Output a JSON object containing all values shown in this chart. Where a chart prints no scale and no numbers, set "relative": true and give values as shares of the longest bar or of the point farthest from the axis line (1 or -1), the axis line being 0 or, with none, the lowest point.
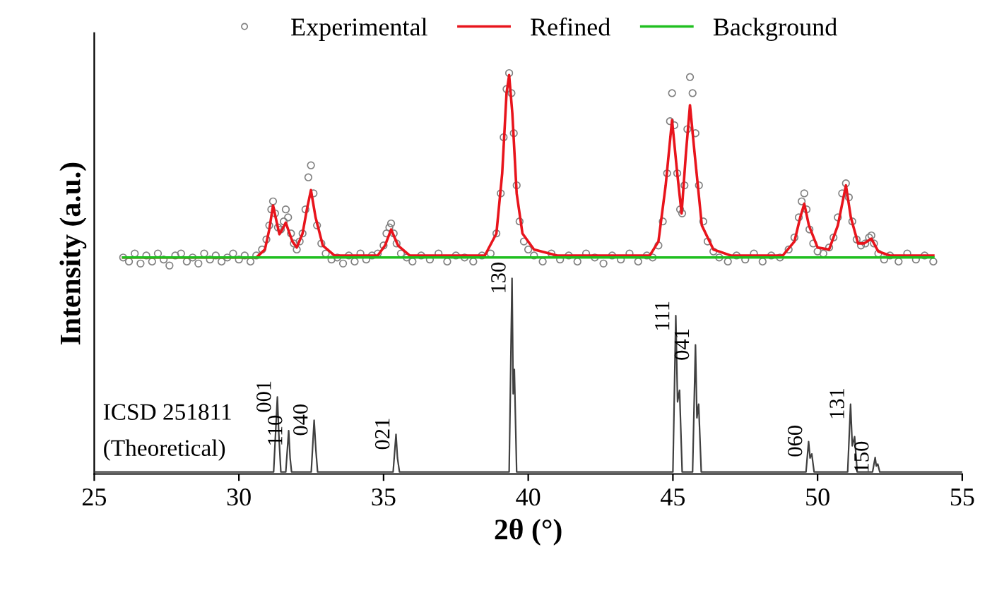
{
  "chart_data": {
    "type": "line",
    "relative": true,
    "xlabel": "2θ (°)",
    "ylabel": "Intensity (a.u.)",
    "xlim": [
      25,
      55
    ],
    "xticks": [
      25,
      30,
      35,
      40,
      45,
      50,
      55
    ],
    "grid": false,
    "legend": "top",
    "series": [
      {
        "name": "Experimental",
        "type": "scatter",
        "marker": "circle",
        "color": "#808080",
        "x": [
          26.0,
          26.2,
          26.4,
          26.6,
          26.8,
          27.0,
          27.2,
          27.4,
          27.6,
          27.8,
          28.0,
          28.2,
          28.4,
          28.6,
          28.8,
          29.0,
          29.2,
          29.4,
          29.6,
          29.8,
          30.0,
          30.2,
          30.4,
          30.6,
          30.8,
          30.95,
          31.05,
          31.12,
          31.18,
          31.25,
          31.35,
          31.45,
          31.55,
          31.62,
          31.7,
          31.8,
          31.9,
          32.0,
          32.1,
          32.2,
          32.3,
          32.4,
          32.49,
          32.58,
          32.7,
          32.85,
          33.0,
          33.2,
          33.4,
          33.6,
          33.8,
          34.0,
          34.2,
          34.4,
          34.6,
          34.8,
          35.0,
          35.1,
          35.2,
          35.26,
          35.35,
          35.45,
          35.6,
          35.8,
          36.0,
          36.3,
          36.6,
          36.9,
          37.2,
          37.5,
          37.8,
          38.1,
          38.4,
          38.7,
          38.9,
          39.05,
          39.15,
          39.25,
          39.34,
          39.42,
          39.5,
          39.6,
          39.7,
          39.85,
          40.0,
          40.2,
          40.5,
          40.8,
          41.1,
          41.4,
          41.7,
          42.0,
          42.3,
          42.6,
          42.9,
          43.2,
          43.5,
          43.8,
          44.1,
          44.3,
          44.5,
          44.65,
          44.8,
          44.9,
          44.97,
          45.05,
          45.15,
          45.25,
          45.32,
          45.4,
          45.5,
          45.59,
          45.68,
          45.78,
          45.9,
          46.05,
          46.2,
          46.4,
          46.6,
          46.9,
          47.2,
          47.5,
          47.8,
          48.1,
          48.4,
          48.7,
          49.0,
          49.2,
          49.35,
          49.45,
          49.54,
          49.62,
          49.72,
          49.85,
          50.0,
          50.2,
          50.4,
          50.55,
          50.7,
          50.85,
          50.98,
          51.08,
          51.2,
          51.35,
          51.5,
          51.65,
          51.78,
          51.86,
          51.95,
          52.1,
          52.3,
          52.5,
          52.8,
          53.1,
          53.4,
          53.7,
          54.0
        ],
        "values": [
          0.54,
          0.53,
          0.55,
          0.525,
          0.545,
          0.53,
          0.55,
          0.535,
          0.52,
          0.545,
          0.55,
          0.53,
          0.54,
          0.525,
          0.55,
          0.535,
          0.545,
          0.53,
          0.54,
          0.55,
          0.535,
          0.545,
          0.53,
          0.545,
          0.56,
          0.585,
          0.62,
          0.66,
          0.68,
          0.65,
          0.615,
          0.61,
          0.63,
          0.66,
          0.64,
          0.6,
          0.575,
          0.56,
          0.58,
          0.6,
          0.66,
          0.74,
          0.77,
          0.7,
          0.62,
          0.575,
          0.55,
          0.535,
          0.54,
          0.525,
          0.545,
          0.53,
          0.55,
          0.535,
          0.545,
          0.55,
          0.57,
          0.6,
          0.615,
          0.625,
          0.6,
          0.575,
          0.55,
          0.54,
          0.53,
          0.545,
          0.535,
          0.55,
          0.53,
          0.545,
          0.54,
          0.53,
          0.545,
          0.55,
          0.6,
          0.7,
          0.84,
          0.96,
          1.0,
          0.95,
          0.85,
          0.72,
          0.63,
          0.58,
          0.56,
          0.545,
          0.53,
          0.55,
          0.535,
          0.545,
          0.53,
          0.55,
          0.54,
          0.525,
          0.545,
          0.535,
          0.55,
          0.53,
          0.545,
          0.54,
          0.57,
          0.63,
          0.75,
          0.88,
          0.95,
          0.87,
          0.75,
          0.66,
          0.65,
          0.72,
          0.86,
          0.99,
          0.95,
          0.85,
          0.72,
          0.63,
          0.58,
          0.555,
          0.54,
          0.53,
          0.545,
          0.535,
          0.55,
          0.53,
          0.545,
          0.54,
          0.56,
          0.59,
          0.64,
          0.68,
          0.7,
          0.66,
          0.61,
          0.575,
          0.555,
          0.55,
          0.565,
          0.59,
          0.64,
          0.7,
          0.725,
          0.69,
          0.63,
          0.585,
          0.57,
          0.575,
          0.59,
          0.595,
          0.575,
          0.55,
          0.535,
          0.545,
          0.53,
          0.55,
          0.535,
          0.545,
          0.53
        ]
      },
      {
        "name": "Refined",
        "color": "#e8141c",
        "x": [
          26.0,
          30.6,
          30.9,
          31.05,
          31.18,
          31.3,
          31.4,
          31.5,
          31.62,
          31.75,
          31.85,
          32.0,
          32.2,
          32.35,
          32.49,
          32.65,
          32.9,
          33.3,
          34.8,
          35.05,
          35.26,
          35.5,
          35.9,
          38.5,
          38.9,
          39.1,
          39.25,
          39.34,
          39.45,
          39.6,
          39.8,
          40.2,
          41.0,
          44.2,
          44.5,
          44.75,
          44.97,
          45.15,
          45.3,
          45.45,
          45.59,
          45.75,
          46.0,
          46.4,
          47.0,
          48.8,
          49.2,
          49.4,
          49.54,
          49.7,
          50.0,
          50.4,
          50.7,
          50.98,
          51.15,
          51.4,
          51.6,
          51.86,
          52.1,
          52.5,
          54.0
        ],
        "values": [
          0.54,
          0.54,
          0.56,
          0.61,
          0.67,
          0.63,
          0.598,
          0.61,
          0.627,
          0.6,
          0.58,
          0.565,
          0.6,
          0.66,
          0.708,
          0.64,
          0.57,
          0.545,
          0.545,
          0.57,
          0.61,
          0.57,
          0.545,
          0.545,
          0.6,
          0.75,
          0.95,
          0.995,
          0.9,
          0.7,
          0.6,
          0.56,
          0.545,
          0.545,
          0.58,
          0.72,
          0.883,
          0.75,
          0.65,
          0.8,
          0.92,
          0.8,
          0.62,
          0.56,
          0.545,
          0.545,
          0.58,
          0.64,
          0.674,
          0.62,
          0.565,
          0.56,
          0.62,
          0.72,
          0.64,
          0.575,
          0.575,
          0.587,
          0.555,
          0.545,
          0.545
        ]
      },
      {
        "name": "Background",
        "color": "#1fbf1f",
        "x": [
          26.0,
          54.0
        ],
        "values": [
          0.54,
          0.54
        ]
      },
      {
        "color": "#404040",
        "x": [
          25,
          31.2,
          31.33,
          31.38,
          31.45,
          31.62,
          31.72,
          31.77,
          31.82,
          32.5,
          32.6,
          32.66,
          32.72,
          35.33,
          35.43,
          35.48,
          35.55,
          39.34,
          39.44,
          39.48,
          39.52,
          39.6,
          45.0,
          45.1,
          45.16,
          45.23,
          45.32,
          45.68,
          45.78,
          45.83,
          45.89,
          45.98,
          49.6,
          49.69,
          49.74,
          49.8,
          49.88,
          51.04,
          51.14,
          51.2,
          51.28,
          51.37,
          51.9,
          51.99,
          52.03,
          52.08,
          52.15,
          55
        ],
        "values": [
          0.005,
          0.005,
          0.192,
          0.099,
          0.005,
          0.005,
          0.108,
          0.04,
          0.005,
          0.005,
          0.134,
          0.06,
          0.005,
          0.005,
          0.099,
          0.04,
          0.005,
          0.005,
          0.488,
          0.2,
          0.261,
          0.005,
          0.005,
          0.395,
          0.18,
          0.209,
          0.005,
          0.005,
          0.322,
          0.14,
          0.174,
          0.005,
          0.005,
          0.081,
          0.04,
          0.05,
          0.005,
          0.005,
          0.174,
          0.07,
          0.093,
          0.005,
          0.005,
          0.041,
          0.02,
          0.025,
          0.005,
          0.005
        ]
      }
    ],
    "annotations": [
      "ICSD 251811\n(Theoretical)",
      {
        "text": "001",
        "x": 31.33,
        "y": 0.192
      },
      {
        "text": "110",
        "x": 31.72,
        "y": 0.108
      },
      {
        "text": "040",
        "x": 32.6,
        "y": 0.134
      },
      {
        "text": "021",
        "x": 35.43,
        "y": 0.099
      },
      {
        "text": "130",
        "x": 39.44,
        "y": 0.488
      },
      {
        "text": "111",
        "x": 45.1,
        "y": 0.395
      },
      {
        "text": "041",
        "x": 45.78,
        "y": 0.322
      },
      {
        "text": "060",
        "x": 49.69,
        "y": 0.081
      },
      {
        "text": "131",
        "x": 51.14,
        "y": 0.174
      },
      {
        "text": "150",
        "x": 51.99,
        "y": 0.041
      }
    ]
  }
}
